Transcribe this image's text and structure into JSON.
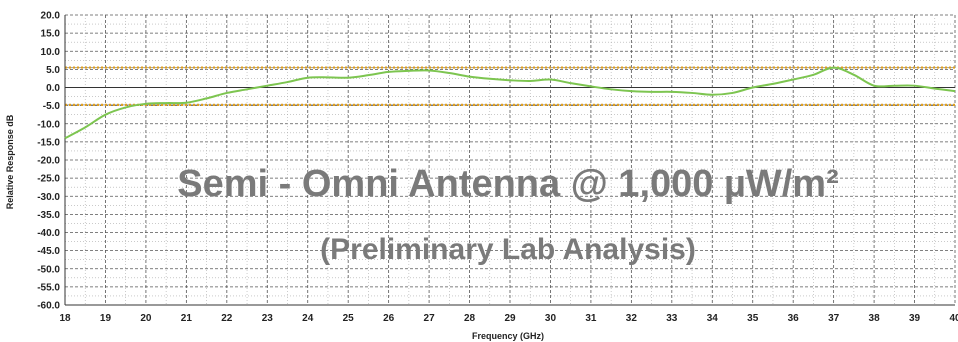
{
  "chart_data": {
    "type": "line",
    "title": "Semi - Omni Antenna @ 1,000 µW/m²",
    "subtitle": "(Preliminary Lab Analysis)",
    "xlabel": "Frequency (GHz)",
    "ylabel": "Relative Response dB",
    "xlim": [
      18,
      40
    ],
    "ylim": [
      -60,
      20
    ],
    "x_ticks": [
      "18",
      "19",
      "20",
      "21",
      "22",
      "23",
      "24",
      "25",
      "26",
      "27",
      "28",
      "29",
      "30",
      "31",
      "32",
      "33",
      "34",
      "35",
      "36",
      "37",
      "38",
      "39",
      "40"
    ],
    "y_ticks": [
      "20.0",
      "15.0",
      "10.0",
      "5.0",
      "0.0",
      "-5.0",
      "-10.0",
      "-15.0",
      "-20.0",
      "-25.0",
      "-30.0",
      "-35.0",
      "-40.0",
      "-45.0",
      "-50.0",
      "-55.0",
      "-60.0"
    ],
    "grid": true,
    "reference_lines": [
      {
        "y": 5.5,
        "color": "#e0a020"
      },
      {
        "y": -4.8,
        "color": "#e0a020"
      }
    ],
    "series": [
      {
        "color": "#7dc550",
        "x": [
          18,
          18.5,
          19,
          19.5,
          20,
          20.5,
          21,
          21.5,
          22,
          22.5,
          23,
          23.5,
          24,
          24.5,
          25,
          25.5,
          26,
          26.5,
          27,
          27.5,
          28,
          28.5,
          29,
          29.5,
          30,
          30.5,
          31,
          31.5,
          32,
          32.5,
          33,
          33.5,
          34,
          34.5,
          35,
          35.5,
          36,
          36.5,
          37,
          37.5,
          38,
          38.5,
          39,
          39.5,
          40
        ],
        "y": [
          -14,
          -11,
          -7.5,
          -5.5,
          -4.5,
          -4.3,
          -4.2,
          -3,
          -1.5,
          -0.5,
          0.5,
          1.5,
          2.7,
          2.8,
          2.7,
          3.4,
          4.3,
          4.6,
          4.7,
          4,
          3,
          2.4,
          2,
          1.8,
          2.2,
          1.2,
          0.3,
          -0.5,
          -1,
          -1.2,
          -1.2,
          -1.5,
          -2,
          -1.5,
          0,
          1,
          2.2,
          3.5,
          5.5,
          3.5,
          0.5,
          0.5,
          0.5,
          -0.3,
          -1
        ]
      }
    ]
  }
}
